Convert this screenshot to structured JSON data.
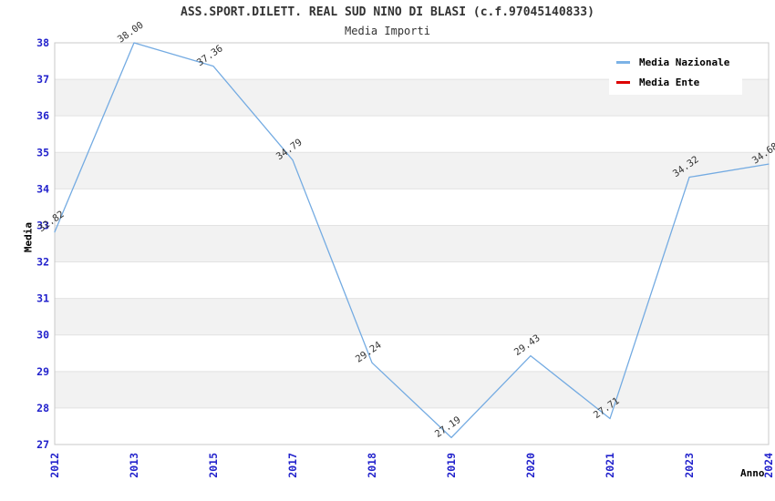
{
  "chart_data": {
    "type": "line",
    "title": "ASS.SPORT.DILETT. REAL SUD NINO DI BLASI (c.f.97045140833)",
    "subtitle": "Media Importi",
    "xlabel": "Anno",
    "ylabel": "Media",
    "categories": [
      "2012",
      "2013",
      "2015",
      "2017",
      "2018",
      "2019",
      "2020",
      "2021",
      "2023",
      "2024"
    ],
    "series": [
      {
        "name": "Media Nazionale",
        "color": "#7cb2e6",
        "values": [
          32.82,
          38.0,
          37.36,
          34.79,
          29.24,
          27.19,
          29.43,
          27.71,
          34.32,
          34.68
        ],
        "point_labels": [
          "32.82",
          "38.00",
          "37.36",
          "34.79",
          "29.24",
          "27.19",
          "29.43",
          "27.71",
          "34.32",
          "34.68"
        ]
      },
      {
        "name": "Media Ente",
        "color": "#dd0000",
        "values": [],
        "point_labels": []
      }
    ],
    "ylim": [
      27,
      38
    ],
    "ytick_step": 1,
    "grid": "horizontal-bands",
    "legend_position": "top-right"
  },
  "colors": {
    "line": "#74abe2",
    "tick_label": "#2222cc",
    "band": "#f2f2f2",
    "grid_line": "#e2e2e2",
    "plot_border": "#c8c8c8",
    "data_label": "#333333"
  }
}
